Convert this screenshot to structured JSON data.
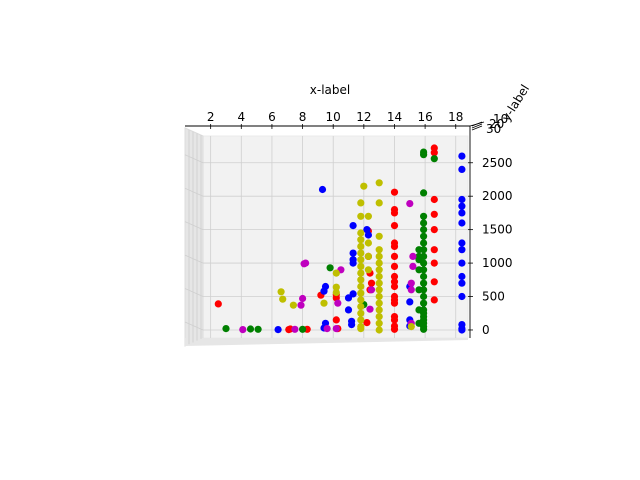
{
  "chart_data": {
    "type": "scatter",
    "projection": "3d",
    "title": "",
    "xlabel": "x-label",
    "ylabel": "y-label",
    "zlabel": "",
    "grid": true,
    "legend": "none",
    "xlim": [
      1.5,
      18.8
    ],
    "zlim": [
      -120,
      2900
    ],
    "xticks": [
      "2",
      "4",
      "6",
      "8",
      "10",
      "12",
      "14",
      "16",
      "18"
    ],
    "zticks": [
      "0",
      "500",
      "1000",
      "1500",
      "2000",
      "2500"
    ],
    "yticks_visible": [
      "10",
      "20",
      "30"
    ],
    "colors": {
      "red": "#ff0000",
      "green": "#008000",
      "blue": "#0000ff",
      "magenta": "#bf00bf",
      "yellow": "#bfbf00"
    },
    "series": [
      {
        "color": "#ff0000",
        "points": [
          [
            2.5,
            390
          ],
          [
            7.1,
            5
          ],
          [
            7.2,
            15
          ],
          [
            8.3,
            10
          ],
          [
            9.2,
            520
          ],
          [
            10.2,
            150
          ],
          [
            10.2,
            480
          ],
          [
            10.2,
            530
          ],
          [
            10.3,
            20
          ],
          [
            12.2,
            110
          ],
          [
            12.4,
            600
          ],
          [
            12.5,
            700
          ],
          [
            12.4,
            850
          ],
          [
            12.3,
            1100
          ],
          [
            12.3,
            1480
          ],
          [
            14.0,
            10
          ],
          [
            14.0,
            60
          ],
          [
            14.0,
            150
          ],
          [
            14.0,
            200
          ],
          [
            14.0,
            400
          ],
          [
            14.0,
            450
          ],
          [
            14.0,
            500
          ],
          [
            14.0,
            650
          ],
          [
            14.0,
            720
          ],
          [
            14.0,
            800
          ],
          [
            14.0,
            950
          ],
          [
            14.0,
            1100
          ],
          [
            14.0,
            1250
          ],
          [
            14.0,
            1300
          ],
          [
            14.0,
            1560
          ],
          [
            14.0,
            1750
          ],
          [
            14.0,
            1800
          ],
          [
            14.0,
            2060
          ],
          [
            16.6,
            450
          ],
          [
            16.6,
            720
          ],
          [
            16.6,
            1000
          ],
          [
            16.6,
            1200
          ],
          [
            16.6,
            1500
          ],
          [
            16.6,
            1730
          ],
          [
            16.6,
            1950
          ],
          [
            16.6,
            2650
          ],
          [
            16.6,
            2720
          ]
        ]
      },
      {
        "color": "#008000",
        "points": [
          [
            3.0,
            20
          ],
          [
            4.6,
            15
          ],
          [
            5.1,
            10
          ],
          [
            8.0,
            10
          ],
          [
            9.8,
            930
          ],
          [
            12.0,
            380
          ],
          [
            15.9,
            10
          ],
          [
            15.9,
            50
          ],
          [
            15.9,
            100
          ],
          [
            15.9,
            150
          ],
          [
            15.9,
            200
          ],
          [
            15.9,
            250
          ],
          [
            15.9,
            300
          ],
          [
            15.9,
            400
          ],
          [
            15.9,
            500
          ],
          [
            15.9,
            600
          ],
          [
            15.9,
            700
          ],
          [
            15.9,
            800
          ],
          [
            15.9,
            900
          ],
          [
            15.9,
            1000
          ],
          [
            15.9,
            1100
          ],
          [
            15.9,
            1200
          ],
          [
            15.9,
            1300
          ],
          [
            15.9,
            1400
          ],
          [
            15.9,
            1500
          ],
          [
            15.9,
            1600
          ],
          [
            15.9,
            1700
          ],
          [
            15.9,
            2050
          ],
          [
            15.9,
            2620
          ],
          [
            15.9,
            2660
          ],
          [
            16.6,
            2560
          ],
          [
            15.6,
            1200
          ],
          [
            15.6,
            1050
          ],
          [
            15.6,
            600
          ],
          [
            15.6,
            100
          ],
          [
            15.6,
            300
          ],
          [
            15.6,
            1100
          ],
          [
            15.6,
            900
          ]
        ]
      },
      {
        "color": "#0000ff",
        "points": [
          [
            6.4,
            5
          ],
          [
            9.3,
            2100
          ],
          [
            9.4,
            30
          ],
          [
            9.4,
            580
          ],
          [
            9.5,
            650
          ],
          [
            9.5,
            100
          ],
          [
            11.2,
            80
          ],
          [
            11.2,
            130
          ],
          [
            11.0,
            300
          ],
          [
            11.0,
            480
          ],
          [
            11.3,
            540
          ],
          [
            11.3,
            1050
          ],
          [
            11.3,
            1150
          ],
          [
            11.3,
            1000
          ],
          [
            11.3,
            1560
          ],
          [
            12.2,
            1500
          ],
          [
            12.3,
            1420
          ],
          [
            15.0,
            60
          ],
          [
            15.0,
            150
          ],
          [
            15.0,
            420
          ],
          [
            15.0,
            650
          ],
          [
            18.4,
            0
          ],
          [
            18.4,
            20
          ],
          [
            18.4,
            80
          ],
          [
            18.4,
            500
          ],
          [
            18.4,
            700
          ],
          [
            18.4,
            800
          ],
          [
            18.4,
            1000
          ],
          [
            18.4,
            1200
          ],
          [
            18.4,
            1300
          ],
          [
            18.4,
            1600
          ],
          [
            18.4,
            1750
          ],
          [
            18.4,
            1850
          ],
          [
            18.4,
            1950
          ],
          [
            18.4,
            2400
          ],
          [
            18.4,
            2600
          ]
        ]
      },
      {
        "color": "#bf00bf",
        "points": [
          [
            4.1,
            5
          ],
          [
            7.5,
            10
          ],
          [
            7.9,
            370
          ],
          [
            8.0,
            470
          ],
          [
            8.1,
            990
          ],
          [
            8.2,
            1000
          ],
          [
            9.6,
            20
          ],
          [
            10.2,
            20
          ],
          [
            10.3,
            400
          ],
          [
            10.5,
            900
          ],
          [
            12.4,
            310
          ],
          [
            12.5,
            600
          ],
          [
            15.0,
            1890
          ],
          [
            15.1,
            100
          ],
          [
            15.1,
            600
          ],
          [
            15.1,
            700
          ],
          [
            15.2,
            950
          ],
          [
            15.2,
            1100
          ]
        ]
      },
      {
        "color": "#bfbf00",
        "points": [
          [
            6.6,
            570
          ],
          [
            6.7,
            460
          ],
          [
            7.4,
            370
          ],
          [
            9.4,
            400
          ],
          [
            10.2,
            640
          ],
          [
            10.2,
            850
          ],
          [
            10.2,
            560
          ],
          [
            11.8,
            20
          ],
          [
            11.8,
            50
          ],
          [
            11.8,
            150
          ],
          [
            11.8,
            250
          ],
          [
            11.8,
            350
          ],
          [
            11.8,
            450
          ],
          [
            11.8,
            550
          ],
          [
            11.8,
            650
          ],
          [
            11.8,
            750
          ],
          [
            11.8,
            850
          ],
          [
            11.8,
            950
          ],
          [
            11.8,
            1050
          ],
          [
            11.8,
            1150
          ],
          [
            11.8,
            1250
          ],
          [
            11.8,
            1350
          ],
          [
            11.8,
            1450
          ],
          [
            11.8,
            1700
          ],
          [
            11.8,
            1900
          ],
          [
            12.0,
            2150
          ],
          [
            13.0,
            0
          ],
          [
            13.0,
            100
          ],
          [
            13.0,
            200
          ],
          [
            13.0,
            300
          ],
          [
            13.0,
            400
          ],
          [
            13.0,
            500
          ],
          [
            13.0,
            600
          ],
          [
            13.0,
            700
          ],
          [
            13.0,
            800
          ],
          [
            13.0,
            900
          ],
          [
            13.0,
            1000
          ],
          [
            13.0,
            1100
          ],
          [
            13.0,
            1200
          ],
          [
            13.0,
            1400
          ],
          [
            13.0,
            1900
          ],
          [
            13.0,
            2200
          ],
          [
            12.3,
            1300
          ],
          [
            12.3,
            1700
          ],
          [
            12.3,
            1100
          ],
          [
            12.3,
            900
          ],
          [
            15.1,
            50
          ]
        ]
      }
    ]
  }
}
